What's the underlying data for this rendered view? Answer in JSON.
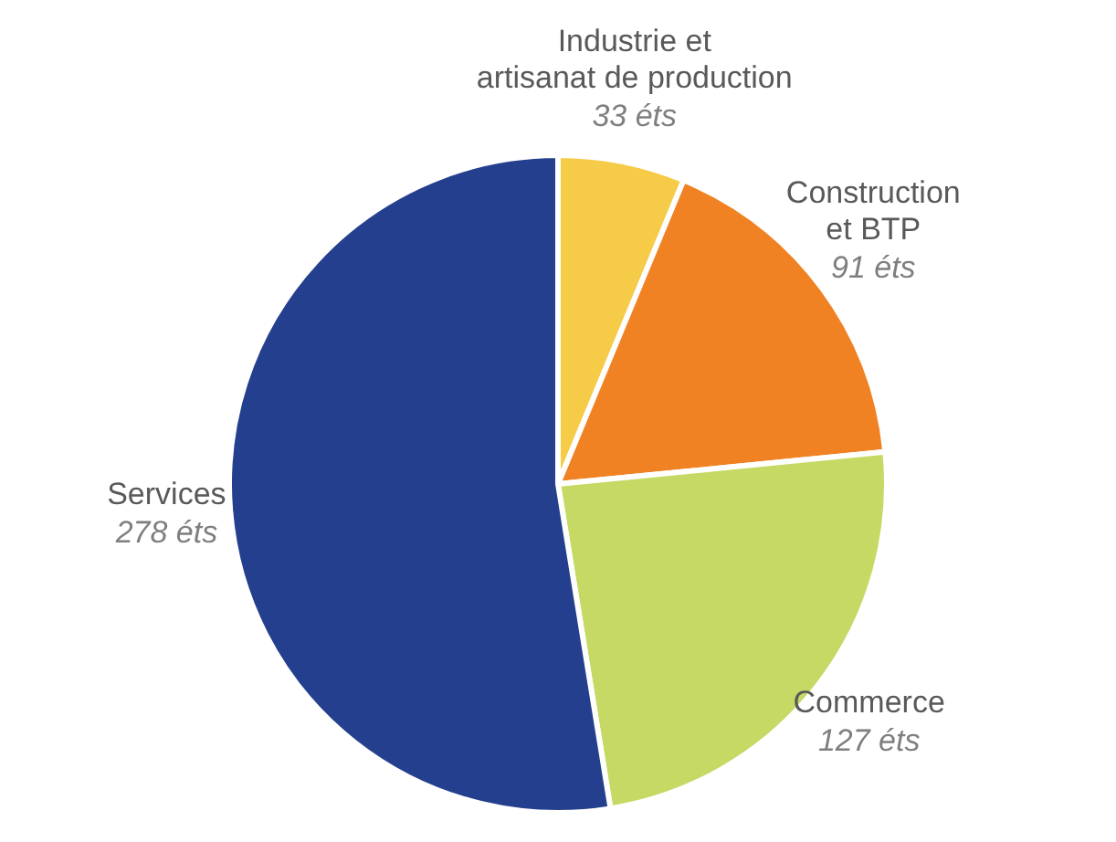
{
  "chart_data": {
    "type": "pie",
    "categories": [
      "Industrie et\nartisanat de production",
      "Construction\net BTP",
      "Commerce",
      "Services"
    ],
    "values": [
      33,
      91,
      127,
      278
    ],
    "value_labels": [
      "33 éts",
      "91 éts",
      "127 éts",
      "278 éts"
    ],
    "colors": [
      "#f5cb47",
      "#f08223",
      "#c6d964",
      "#243f8e"
    ],
    "legend": false
  }
}
